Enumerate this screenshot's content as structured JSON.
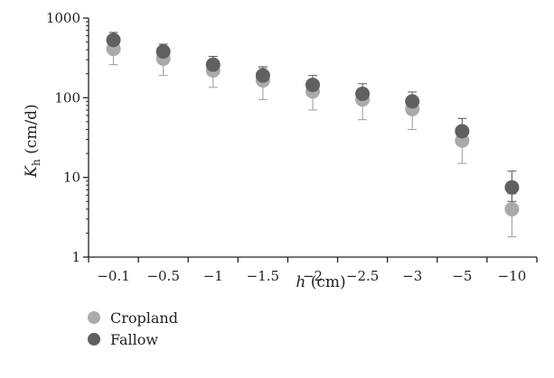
{
  "chart_data": {
    "type": "scatter",
    "title": "",
    "xlabel": {
      "italic": "h",
      "rest": " (cm)"
    },
    "ylabel": {
      "italic": "K",
      "sub": "h",
      "rest": " (cm/d)"
    },
    "y_scale": "log",
    "ylim": [
      1,
      1000
    ],
    "y_ticks": [
      "1",
      "10",
      "100",
      "1000"
    ],
    "categories": [
      "−0.1",
      "−0.5",
      "−1",
      "−1.5",
      "−2",
      "−2.5",
      "−3",
      "−5",
      "−10"
    ],
    "series": [
      {
        "name": "Cropland",
        "color": "#aaaaaa",
        "values": [
          410,
          310,
          220,
          165,
          120,
          95,
          72,
          29,
          4
        ],
        "err_low": [
          260,
          190,
          135,
          95,
          70,
          53,
          40,
          15,
          1.8
        ],
        "err_high": [
          560,
          420,
          300,
          235,
          170,
          132,
          102,
          43,
          6.2
        ]
      },
      {
        "name": "Fallow",
        "color": "#606060",
        "values": [
          530,
          380,
          260,
          190,
          145,
          112,
          90,
          38,
          7.5
        ],
        "err_low": [
          410,
          300,
          200,
          145,
          110,
          85,
          68,
          28,
          5
        ],
        "err_high": [
          660,
          470,
          330,
          245,
          190,
          150,
          118,
          55,
          12
        ]
      }
    ],
    "legend": {
      "position": "bottom-left"
    },
    "grid": false
  }
}
